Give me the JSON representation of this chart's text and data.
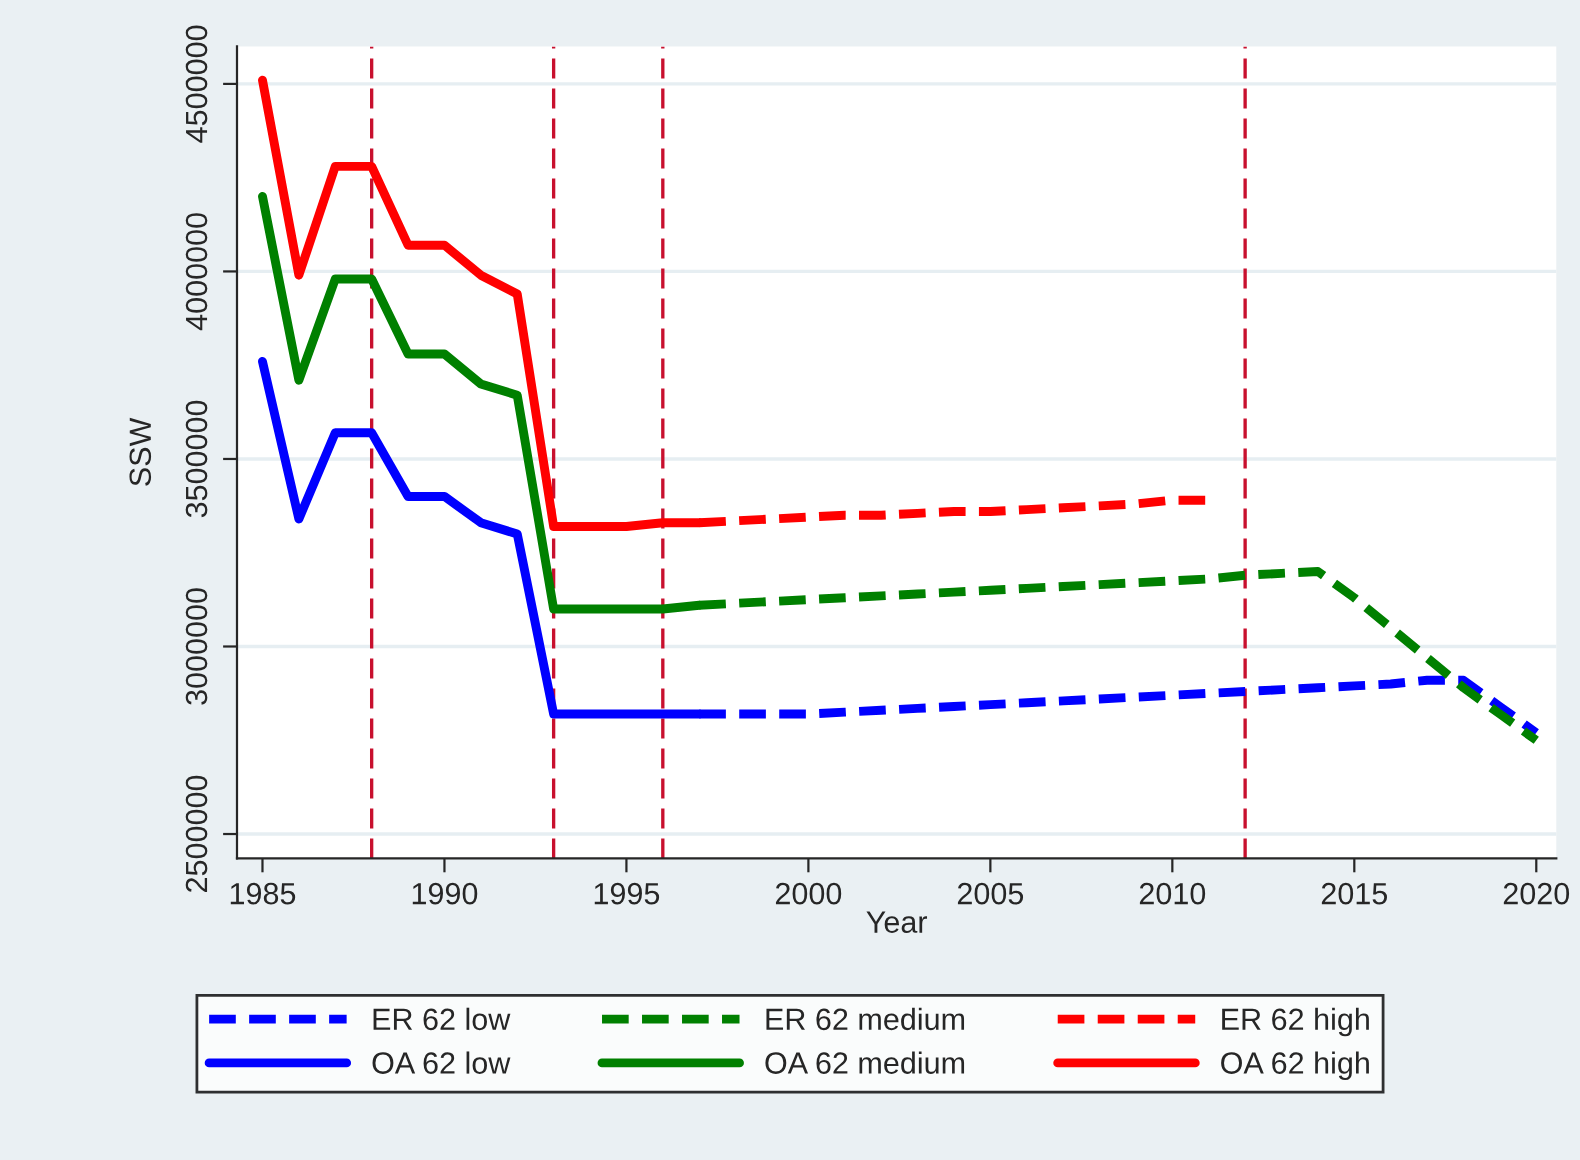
{
  "chart_data": {
    "type": "line",
    "xlabel": "Year",
    "ylabel": "SSW",
    "xlim": [
      1984.3,
      2020.55
    ],
    "xticks": [
      1985,
      1990,
      1995,
      2000,
      2005,
      2010,
      2015,
      2020
    ],
    "ylim": [
      2435000,
      4600000
    ],
    "yticks": [
      2500000,
      3000000,
      3500000,
      4000000,
      4500000
    ],
    "grid": "y",
    "legend": "bottom",
    "marker": "none",
    "series": [
      {
        "name": "ER 62 low",
        "color": "#0000ff",
        "line_style": "dashed",
        "x": [
          1997,
          1998,
          1999,
          2000,
          2001,
          2002,
          2003,
          2004,
          2005,
          2006,
          2007,
          2008,
          2009,
          2010,
          2011,
          2012,
          2013,
          2014,
          2015,
          2016,
          2017,
          2018,
          2019,
          2020
        ],
        "values": [
          2820000,
          2820000,
          2820000,
          2820000,
          2825000,
          2830000,
          2835000,
          2840000,
          2845000,
          2850000,
          2855000,
          2860000,
          2865000,
          2870000,
          2875000,
          2880000,
          2885000,
          2890000,
          2895000,
          2900000,
          2910000,
          2910000,
          2840000,
          2770000
        ]
      },
      {
        "name": "ER 62 medium",
        "color": "#008000",
        "line_style": "dashed",
        "x": [
          1997,
          1998,
          1999,
          2000,
          2001,
          2002,
          2003,
          2004,
          2005,
          2006,
          2007,
          2008,
          2009,
          2010,
          2011,
          2012,
          2013,
          2014,
          2015,
          2016,
          2017,
          2018,
          2019,
          2020
        ],
        "values": [
          3110000,
          3115000,
          3120000,
          3125000,
          3130000,
          3135000,
          3140000,
          3145000,
          3150000,
          3155000,
          3160000,
          3165000,
          3170000,
          3175000,
          3180000,
          3190000,
          3195000,
          3200000,
          3130000,
          3050000,
          2970000,
          2890000,
          2820000,
          2750000
        ]
      },
      {
        "name": "ER 62 high",
        "color": "#ff0000",
        "line_style": "dashed",
        "x": [
          1997,
          1998,
          1999,
          2000,
          2001,
          2002,
          2003,
          2004,
          2005,
          2006,
          2007,
          2008,
          2009,
          2010,
          2011
        ],
        "values": [
          3330000,
          3335000,
          3340000,
          3345000,
          3350000,
          3350000,
          3355000,
          3360000,
          3360000,
          3365000,
          3370000,
          3375000,
          3380000,
          3390000,
          3390000
        ]
      },
      {
        "name": "OA 62 low",
        "color": "#0000ff",
        "line_style": "solid",
        "x": [
          1985,
          1986,
          1987,
          1988,
          1989,
          1990,
          1991,
          1992,
          1993,
          1994,
          1995,
          1996,
          1997
        ],
        "values": [
          3760000,
          3340000,
          3570000,
          3570000,
          3400000,
          3400000,
          3330000,
          3300000,
          2820000,
          2820000,
          2820000,
          2820000,
          2820000
        ]
      },
      {
        "name": "OA 62 medium",
        "color": "#008000",
        "line_style": "solid",
        "x": [
          1985,
          1986,
          1987,
          1988,
          1989,
          1990,
          1991,
          1992,
          1993,
          1994,
          1995,
          1996,
          1997
        ],
        "values": [
          4200000,
          3710000,
          3980000,
          3980000,
          3780000,
          3780000,
          3700000,
          3670000,
          3100000,
          3100000,
          3100000,
          3100000,
          3110000
        ]
      },
      {
        "name": "OA 62 high",
        "color": "#ff0000",
        "line_style": "solid",
        "x": [
          1985,
          1986,
          1987,
          1988,
          1989,
          1990,
          1991,
          1992,
          1993,
          1994,
          1995,
          1996,
          1997
        ],
        "values": [
          4510000,
          3990000,
          4280000,
          4280000,
          4070000,
          4070000,
          3990000,
          3940000,
          3320000,
          3320000,
          3320000,
          3330000,
          3330000
        ]
      }
    ],
    "ref_lines": [
      {
        "axis": "x",
        "value": 1988,
        "color": "#c8102e",
        "line_style": "dashed"
      },
      {
        "axis": "x",
        "value": 1993,
        "color": "#c8102e",
        "line_style": "dashed"
      },
      {
        "axis": "x",
        "value": 1996,
        "color": "#c8102e",
        "line_style": "dashed"
      },
      {
        "axis": "x",
        "value": 2012,
        "color": "#c8102e",
        "line_style": "dashed"
      }
    ]
  }
}
